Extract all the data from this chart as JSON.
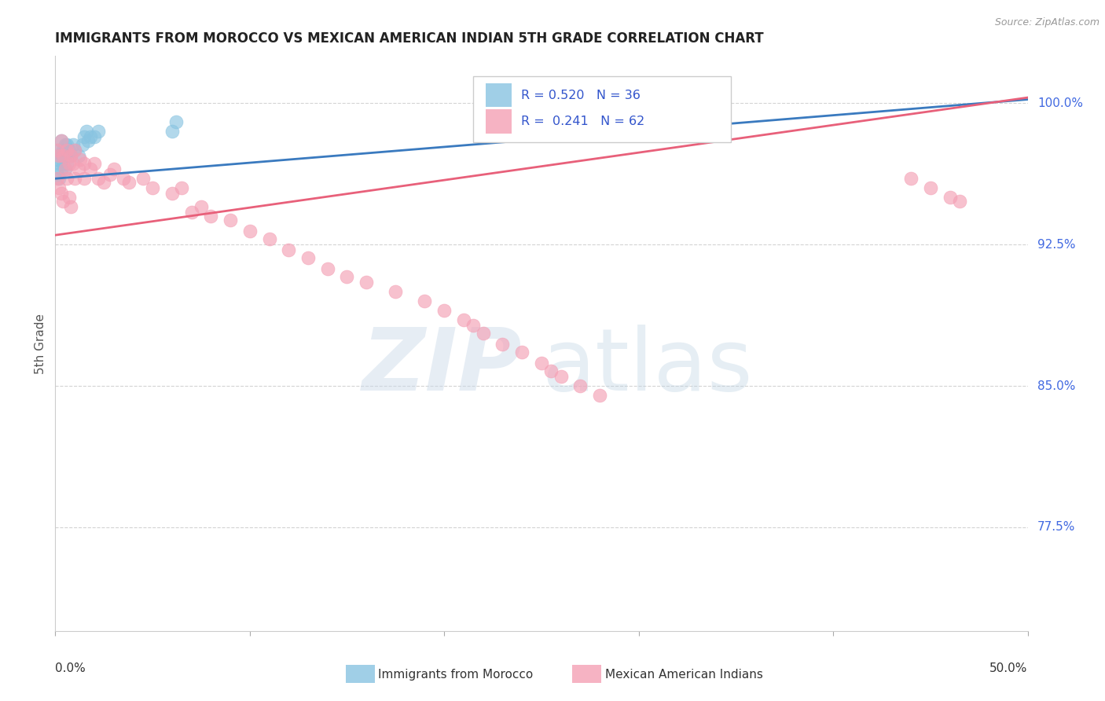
{
  "title": "IMMIGRANTS FROM MOROCCO VS MEXICAN AMERICAN INDIAN 5TH GRADE CORRELATION CHART",
  "source": "Source: ZipAtlas.com",
  "ylabel": "5th Grade",
  "xlim": [
    0.0,
    0.5
  ],
  "ylim": [
    0.72,
    1.025
  ],
  "blue_R": "0.520",
  "blue_N": "36",
  "pink_R": "0.241",
  "pink_N": "62",
  "blue_color": "#89c4e1",
  "pink_color": "#f4a0b5",
  "blue_line_color": "#3a7abf",
  "pink_line_color": "#e8607a",
  "legend_label_blue": "Immigrants from Morocco",
  "legend_label_pink": "Mexican American Indians",
  "blue_line_x0": 0.0,
  "blue_line_y0": 0.96,
  "blue_line_x1": 0.5,
  "blue_line_y1": 1.002,
  "pink_line_x0": 0.0,
  "pink_line_y0": 0.93,
  "pink_line_x1": 0.5,
  "pink_line_y1": 1.003,
  "blue_scatter_x": [
    0.001,
    0.001,
    0.002,
    0.002,
    0.002,
    0.003,
    0.003,
    0.003,
    0.004,
    0.004,
    0.005,
    0.005,
    0.005,
    0.006,
    0.006,
    0.007,
    0.008,
    0.009,
    0.01,
    0.012,
    0.014,
    0.015,
    0.016,
    0.017,
    0.018,
    0.02,
    0.022,
    0.06,
    0.062,
    0.28,
    0.29,
    0.295,
    0.305,
    0.32,
    0.33,
    0.34
  ],
  "blue_scatter_y": [
    0.97,
    0.962,
    0.975,
    0.968,
    0.96,
    0.98,
    0.973,
    0.965,
    0.975,
    0.968,
    0.978,
    0.972,
    0.965,
    0.978,
    0.968,
    0.975,
    0.972,
    0.978,
    0.975,
    0.972,
    0.978,
    0.982,
    0.985,
    0.98,
    0.982,
    0.982,
    0.985,
    0.985,
    0.99,
    0.995,
    0.997,
    0.998,
    0.998,
    1.0,
    0.999,
    1.001
  ],
  "pink_scatter_x": [
    0.001,
    0.001,
    0.002,
    0.002,
    0.003,
    0.003,
    0.004,
    0.004,
    0.005,
    0.006,
    0.006,
    0.007,
    0.007,
    0.008,
    0.008,
    0.009,
    0.01,
    0.01,
    0.012,
    0.013,
    0.015,
    0.015,
    0.018,
    0.02,
    0.022,
    0.025,
    0.028,
    0.03,
    0.035,
    0.038,
    0.045,
    0.05,
    0.06,
    0.065,
    0.07,
    0.075,
    0.08,
    0.09,
    0.1,
    0.11,
    0.12,
    0.13,
    0.14,
    0.15,
    0.16,
    0.175,
    0.19,
    0.2,
    0.21,
    0.215,
    0.22,
    0.23,
    0.24,
    0.25,
    0.255,
    0.26,
    0.27,
    0.28,
    0.44,
    0.45,
    0.46,
    0.465
  ],
  "pink_scatter_y": [
    0.975,
    0.96,
    0.972,
    0.955,
    0.98,
    0.952,
    0.972,
    0.948,
    0.965,
    0.975,
    0.96,
    0.968,
    0.95,
    0.972,
    0.945,
    0.968,
    0.975,
    0.96,
    0.965,
    0.97,
    0.968,
    0.96,
    0.965,
    0.968,
    0.96,
    0.958,
    0.962,
    0.965,
    0.96,
    0.958,
    0.96,
    0.955,
    0.952,
    0.955,
    0.942,
    0.945,
    0.94,
    0.938,
    0.932,
    0.928,
    0.922,
    0.918,
    0.912,
    0.908,
    0.905,
    0.9,
    0.895,
    0.89,
    0.885,
    0.882,
    0.878,
    0.872,
    0.868,
    0.862,
    0.858,
    0.855,
    0.85,
    0.845,
    0.96,
    0.955,
    0.95,
    0.948
  ]
}
